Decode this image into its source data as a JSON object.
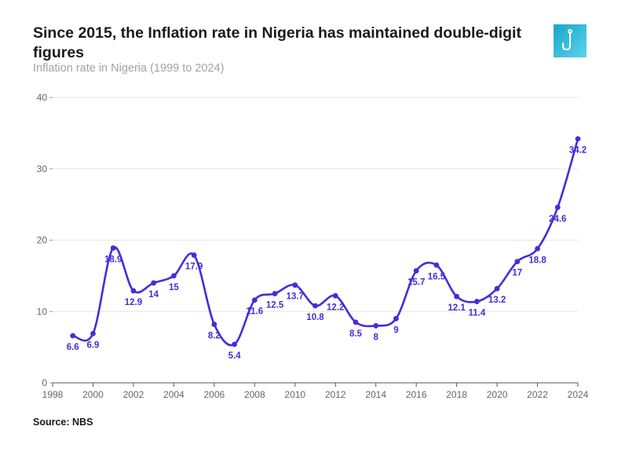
{
  "header": {
    "title": "Since 2015, the Inflation rate in Nigeria has maintained double-digit figures",
    "subtitle": "Inflation rate in Nigeria (1999 to 2024)"
  },
  "logo": {
    "icon": "hook-icon",
    "color": "#2bb3d8"
  },
  "footer": {
    "source": "Source: NBS"
  },
  "chart_data": {
    "type": "line",
    "title": "Since 2015, the Inflation rate in Nigeria has maintained double-digit figures",
    "subtitle": "Inflation rate in Nigeria (1999 to 2024)",
    "xlabel": "",
    "ylabel": "",
    "xlim": [
      1998,
      2024
    ],
    "ylim": [
      0,
      40
    ],
    "xticks": [
      1998,
      2000,
      2002,
      2004,
      2006,
      2008,
      2010,
      2012,
      2014,
      2016,
      2018,
      2020,
      2022,
      2024
    ],
    "yticks": [
      0,
      10,
      20,
      30,
      40
    ],
    "grid": true,
    "legend": "none",
    "color": "#4a2bd6",
    "series": [
      {
        "x": [
          1999,
          2000,
          2001,
          2002,
          2003,
          2004,
          2005,
          2006,
          2007,
          2008,
          2009,
          2010,
          2011,
          2012,
          2013,
          2014,
          2015,
          2016,
          2017,
          2018,
          2019,
          2020,
          2021,
          2022,
          2023,
          2024
        ],
        "values": [
          6.6,
          6.9,
          18.9,
          12.9,
          14,
          15,
          17.9,
          8.2,
          5.4,
          11.6,
          12.5,
          13.7,
          10.8,
          12.2,
          8.5,
          8,
          9,
          15.7,
          16.5,
          12.1,
          11.4,
          13.2,
          17,
          18.8,
          24.6,
          34.2
        ],
        "labels": [
          "6.6",
          "6.9",
          "18.9",
          "12.9",
          "14",
          "15",
          "17.9",
          "8.2",
          "5.4",
          "11.6",
          "12.5",
          "13.7",
          "10.8",
          "12.2",
          "8.5",
          "8",
          "9",
          "15.7",
          "16.5",
          "12.1",
          "11.4",
          "13.2",
          "17",
          "18.8",
          "24.6",
          "34.2"
        ]
      }
    ]
  }
}
